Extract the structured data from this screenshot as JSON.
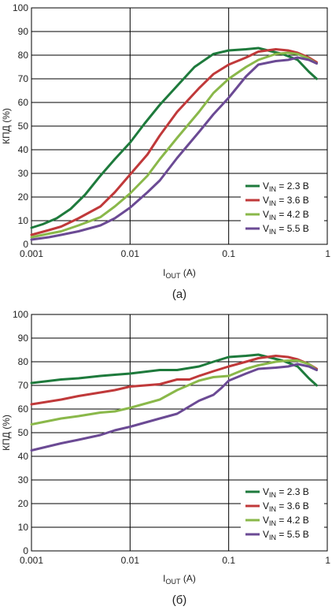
{
  "colors": {
    "2.3": "#1e7a3c",
    "3.6": "#c0393a",
    "4.2": "#8ab84a",
    "5.5": "#6b4a94",
    "grid": "#000000",
    "background": "#ffffff"
  },
  "chart_data": [
    {
      "id": "a",
      "type": "line",
      "caption": "(а)",
      "ylabel": "КПД (%)",
      "xlabel_main": "I",
      "xlabel_sub": "OUT",
      "xlabel_unit": " (A)",
      "xscale": "log",
      "xlim": [
        0.001,
        1
      ],
      "ylim": [
        0,
        100
      ],
      "xticks": [
        "0.001",
        "0.01",
        "0.1",
        "1"
      ],
      "yticks": [
        "0",
        "10",
        "20",
        "30",
        "40",
        "50",
        "60",
        "70",
        "80",
        "90",
        "100"
      ],
      "grid": "vertical at decades, horizontal every 10",
      "legend_position": "bottom-right",
      "series": [
        {
          "key": "2.3",
          "legend_main": "V",
          "legend_sub": "IN",
          "legend_rest": " = 2.3 В",
          "x": [
            0.001,
            0.0013,
            0.0018,
            0.0025,
            0.0035,
            0.005,
            0.007,
            0.01,
            0.014,
            0.02,
            0.03,
            0.045,
            0.07,
            0.1,
            0.15,
            0.2,
            0.25,
            0.35,
            0.5,
            0.65,
            0.78
          ],
          "y": [
            7,
            8.5,
            11,
            15,
            21,
            29,
            36,
            43,
            51,
            59,
            67,
            75,
            80.5,
            82,
            82.5,
            83,
            82,
            80.5,
            78,
            73,
            70
          ]
        },
        {
          "key": "3.6",
          "legend_main": "V",
          "legend_sub": "IN",
          "legend_rest": " = 3.6 В",
          "x": [
            0.001,
            0.0015,
            0.002,
            0.003,
            0.005,
            0.007,
            0.01,
            0.015,
            0.02,
            0.03,
            0.05,
            0.07,
            0.1,
            0.15,
            0.2,
            0.3,
            0.4,
            0.5,
            0.65,
            0.78
          ],
          "y": [
            4,
            6,
            7.5,
            11,
            16,
            22,
            29.5,
            38,
            46,
            56,
            66,
            72,
            76,
            79,
            81.5,
            82.5,
            82,
            81,
            79,
            77
          ]
        },
        {
          "key": "4.2",
          "legend_main": "V",
          "legend_sub": "IN",
          "legend_rest": " = 4.2 В",
          "x": [
            0.001,
            0.0015,
            0.002,
            0.003,
            0.005,
            0.007,
            0.01,
            0.015,
            0.02,
            0.03,
            0.05,
            0.07,
            0.1,
            0.15,
            0.2,
            0.3,
            0.4,
            0.5,
            0.65,
            0.78
          ],
          "y": [
            3,
            4.5,
            5.5,
            8,
            11.5,
            16,
            21.5,
            29,
            36,
            45,
            56,
            64,
            70,
            75,
            78,
            80.5,
            81,
            80.5,
            78.5,
            76.5
          ]
        },
        {
          "key": "5.5",
          "legend_main": "V",
          "legend_sub": "IN",
          "legend_rest": " = 5.5 В",
          "x": [
            0.001,
            0.0015,
            0.002,
            0.003,
            0.005,
            0.007,
            0.01,
            0.015,
            0.02,
            0.03,
            0.05,
            0.07,
            0.1,
            0.15,
            0.2,
            0.3,
            0.4,
            0.5,
            0.65,
            0.78
          ],
          "y": [
            2,
            3,
            4,
            5.5,
            8,
            11,
            15.5,
            22,
            27,
            36.5,
            47.5,
            55,
            62,
            71,
            76,
            77.5,
            78,
            79,
            78,
            76.5
          ]
        }
      ]
    },
    {
      "id": "b",
      "type": "line",
      "caption": "(б)",
      "ylabel": "КПД (%)",
      "xlabel_main": "I",
      "xlabel_sub": "OUT",
      "xlabel_unit": " (A)",
      "xscale": "log",
      "xlim": [
        0.001,
        1
      ],
      "ylim": [
        0,
        100
      ],
      "xticks": [
        "0.001",
        "0.01",
        "0.1",
        "1"
      ],
      "yticks": [
        "0",
        "10",
        "20",
        "30",
        "40",
        "50",
        "60",
        "70",
        "80",
        "90",
        "100"
      ],
      "grid": "vertical at decades, horizontal every 10",
      "legend_position": "bottom-right",
      "series": [
        {
          "key": "2.3",
          "legend_main": "V",
          "legend_sub": "IN",
          "legend_rest": " = 2.3 В",
          "x": [
            0.001,
            0.002,
            0.003,
            0.005,
            0.007,
            0.01,
            0.02,
            0.03,
            0.05,
            0.07,
            0.1,
            0.15,
            0.2,
            0.25,
            0.35,
            0.5,
            0.65,
            0.78
          ],
          "y": [
            71,
            72.5,
            73,
            74,
            74.5,
            75,
            76.5,
            76.5,
            78,
            80,
            82,
            82.5,
            83,
            82,
            80.5,
            78,
            73,
            70
          ]
        },
        {
          "key": "3.6",
          "legend_main": "V",
          "legend_sub": "IN",
          "legend_rest": " = 3.6 В",
          "x": [
            0.001,
            0.002,
            0.003,
            0.005,
            0.007,
            0.01,
            0.02,
            0.03,
            0.04,
            0.05,
            0.07,
            0.1,
            0.15,
            0.2,
            0.3,
            0.4,
            0.5,
            0.65,
            0.78
          ],
          "y": [
            62,
            64,
            65.5,
            67,
            68,
            69.5,
            70.5,
            72.5,
            72.5,
            74,
            76,
            78,
            80,
            81.5,
            82.5,
            82,
            81,
            79,
            77
          ]
        },
        {
          "key": "4.2",
          "legend_main": "V",
          "legend_sub": "IN",
          "legend_rest": " = 4.2 В",
          "x": [
            0.001,
            0.002,
            0.003,
            0.005,
            0.007,
            0.01,
            0.02,
            0.03,
            0.05,
            0.07,
            0.1,
            0.15,
            0.2,
            0.3,
            0.4,
            0.5,
            0.65,
            0.78
          ],
          "y": [
            53.5,
            56,
            57,
            58.5,
            59,
            60.5,
            64,
            68,
            72,
            73.5,
            74,
            77,
            78.5,
            80,
            80.5,
            80.5,
            79,
            76.5
          ]
        },
        {
          "key": "5.5",
          "legend_main": "V",
          "legend_sub": "IN",
          "legend_rest": " = 5.5 В",
          "x": [
            0.001,
            0.002,
            0.003,
            0.005,
            0.007,
            0.01,
            0.02,
            0.03,
            0.05,
            0.07,
            0.085,
            0.1,
            0.15,
            0.2,
            0.3,
            0.4,
            0.5,
            0.65,
            0.78
          ],
          "y": [
            42.5,
            45.5,
            47,
            49,
            51,
            52.5,
            56,
            58,
            63.5,
            66,
            69,
            72,
            75,
            77,
            77.5,
            78,
            79,
            78,
            76.5
          ]
        }
      ]
    }
  ]
}
